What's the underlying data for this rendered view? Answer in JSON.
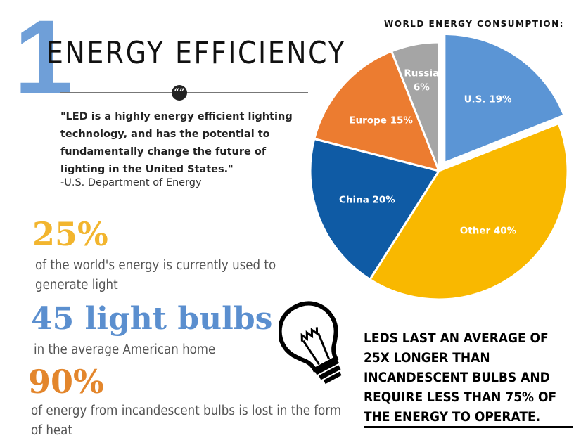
{
  "header": {
    "number": "1",
    "title": "ENERGY EFFICIENCY"
  },
  "quote": {
    "badge": "“”",
    "text": "\"LED is a highly energy efficient lighting technology, and has the potential to fundamentally change the future of lighting in the United States.\"",
    "source": "-U.S. Department of Energy"
  },
  "stats": [
    {
      "value": "25%",
      "description": "of the world's energy is currently used to generate light",
      "color": "#f2b52e"
    },
    {
      "value": "45 light bulbs",
      "description": "in the average American home",
      "color": "#5b8fcf"
    },
    {
      "value": "90%",
      "description": "of energy from incandescent bulbs is lost in the form of heat",
      "color": "#e3862c"
    }
  ],
  "led_fact": "LEDS LAST AN AVERAGE OF 25X LONGER THAN INCANDESCENT BULBS AND REQUIRE LESS THAN 75% OF THE ENERGY TO OPERATE.",
  "icons": {
    "bulb": "light-bulb-icon"
  },
  "chart_data": {
    "type": "pie",
    "title": "WORLD ENERGY CONSUMPTION:",
    "slices": [
      {
        "label": "U.S. 19%",
        "name": "U.S.",
        "value": 19,
        "color": "#5b95d5",
        "exploded": true
      },
      {
        "label": "Other 40%",
        "name": "Other",
        "value": 40,
        "color": "#f9b800",
        "exploded": false
      },
      {
        "label": "China 20%",
        "name": "China",
        "value": 20,
        "color": "#0f5ba5",
        "exploded": false
      },
      {
        "label": "Europe 15%",
        "name": "Europe",
        "value": 15,
        "color": "#ec7c30",
        "exploded": false
      },
      {
        "label": "Russia 6%",
        "name": "Russia",
        "value": 6,
        "color": "#a5a5a5",
        "exploded": false
      }
    ]
  }
}
